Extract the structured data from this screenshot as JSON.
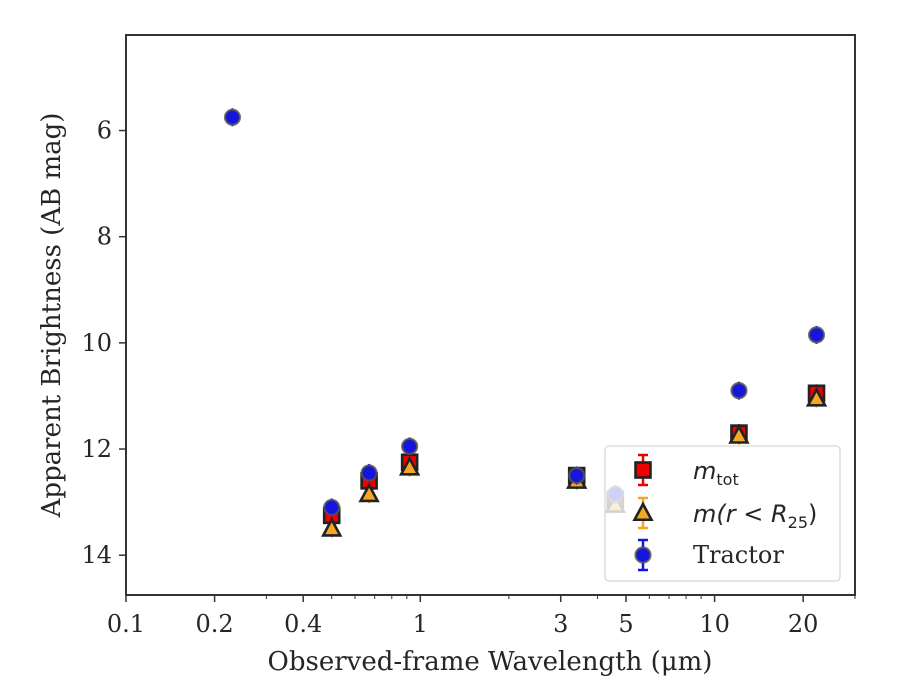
{
  "chart_data": {
    "type": "scatter",
    "xlabel": "Observed-frame Wavelength (μm)",
    "ylabel": "Apparent Brightness (AB mag)",
    "xscale": "log",
    "xlim": [
      0.1,
      30
    ],
    "ylim": [
      14.75,
      4.2
    ],
    "y_inverted": true,
    "x_ticks": [
      0.1,
      0.2,
      0.4,
      1,
      3,
      5,
      10,
      20
    ],
    "x_tick_labels": [
      "0.1",
      "0.2",
      "0.4",
      "1",
      "3",
      "5",
      "10",
      "20"
    ],
    "y_ticks": [
      6,
      8,
      10,
      12,
      14
    ],
    "y_tick_labels": [
      "6",
      "8",
      "10",
      "12",
      "14"
    ],
    "legend_position": "lower-right",
    "grid": false,
    "series": [
      {
        "name": "m_tot",
        "legend_main": "m",
        "legend_sub": "tot",
        "marker": "square",
        "color": "#ee0000",
        "edge_color": "#222222",
        "x": [
          0.5,
          0.67,
          0.92,
          3.4,
          4.6,
          12.1,
          22.2
        ],
        "y": [
          13.25,
          12.6,
          12.25,
          12.5,
          12.95,
          11.7,
          10.95
        ]
      },
      {
        "name": "m(r < R25)",
        "legend_main": "m(r < R",
        "legend_sub": "25",
        "legend_tail": ")",
        "marker": "triangle",
        "color": "#f5a623",
        "edge_color": "#222222",
        "x": [
          0.5,
          0.67,
          0.92,
          3.4,
          4.6,
          12.1,
          22.2
        ],
        "y": [
          13.5,
          12.85,
          12.35,
          12.6,
          13.05,
          11.75,
          11.05
        ]
      },
      {
        "name": "Tractor",
        "marker": "circle",
        "color": "#1515dd",
        "edge_color": "#555555",
        "x": [
          0.23,
          0.5,
          0.67,
          0.92,
          3.4,
          4.6,
          12.1,
          22.2
        ],
        "y": [
          5.75,
          13.1,
          12.45,
          11.95,
          12.5,
          12.85,
          10.9,
          9.85
        ]
      }
    ]
  }
}
